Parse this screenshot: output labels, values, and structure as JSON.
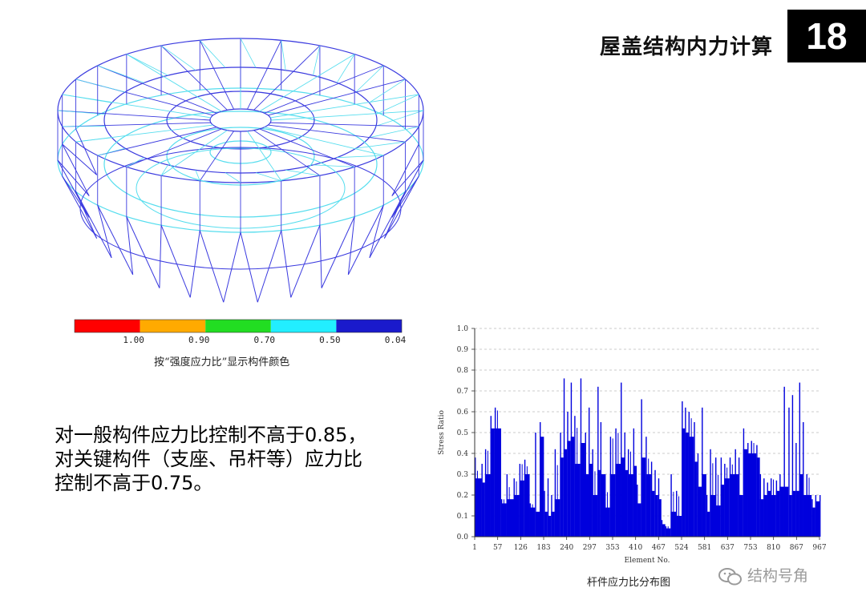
{
  "header": {
    "title": "屋盖结构内力计算",
    "page_number": "18"
  },
  "legend": {
    "colors": [
      "#ff0000",
      "#ffaa00",
      "#22dd22",
      "#22eeff",
      "#1a1acc"
    ],
    "tick_labels": [
      "1.00",
      "0.90",
      "0.70",
      "0.50",
      "0.04"
    ],
    "caption": "按“强度应力比”显示构件颜色"
  },
  "body_text": "对一般构件应力比控制不高于0.85，对关键构件（支座、吊杆等）应力比控制不高于0.75。",
  "watermark": {
    "text": "结构号角",
    "icon": "wechat-icon"
  },
  "chart_data": {
    "type": "bar",
    "title": "",
    "xlabel": "Element No.",
    "ylabel": "Stress Ratio",
    "caption": "杆件应力比分布图",
    "ylim": [
      0,
      1.0
    ],
    "y_ticks": [
      "0.0",
      "0.1",
      "0.2",
      "0.3",
      "0.4",
      "0.5",
      "0.6",
      "0.7",
      "0.8",
      "0.9",
      "1.0"
    ],
    "x_ticks": [
      "1",
      "57",
      "126",
      "183",
      "240",
      "297",
      "353",
      "410",
      "467",
      "524",
      "581",
      "637",
      "753",
      "810",
      "867",
      "967"
    ],
    "grid": true,
    "bar_color": "#0000dd",
    "element_range": [
      1,
      967
    ],
    "x": [
      1,
      20,
      30,
      45,
      57,
      75,
      90,
      110,
      126,
      140,
      155,
      170,
      183,
      195,
      205,
      215,
      225,
      240,
      250,
      260,
      270,
      280,
      297,
      310,
      320,
      330,
      345,
      353,
      365,
      380,
      395,
      410,
      420,
      430,
      445,
      455,
      467,
      480,
      495,
      505,
      515,
      524,
      535,
      550,
      565,
      581,
      590,
      600,
      615,
      625,
      637,
      650,
      660,
      675,
      690,
      700,
      715,
      730,
      740,
      753,
      765,
      775,
      790,
      800,
      810,
      820,
      830,
      845,
      855,
      867,
      880,
      890,
      900,
      910,
      920,
      930,
      945,
      955,
      967
    ],
    "y": [
      0.38,
      0.35,
      0.42,
      0.58,
      0.62,
      0.18,
      0.3,
      0.28,
      0.35,
      0.37,
      0.16,
      0.5,
      0.55,
      0.22,
      0.28,
      0.2,
      0.42,
      0.5,
      0.76,
      0.6,
      0.74,
      0.58,
      0.76,
      0.5,
      0.62,
      0.42,
      0.72,
      0.55,
      0.3,
      0.48,
      0.52,
      0.74,
      0.5,
      0.42,
      0.52,
      0.25,
      0.66,
      0.48,
      0.36,
      0.32,
      0.28,
      0.08,
      0.05,
      0.3,
      0.22,
      0.65,
      0.62,
      0.6,
      0.55,
      0.4,
      0.62,
      0.2,
      0.42,
      0.38,
      0.38,
      0.35,
      0.38,
      0.42,
      0.38,
      0.52,
      0.45,
      0.46,
      0.44,
      0.3,
      0.28,
      0.26,
      0.28,
      0.27,
      0.3,
      0.72,
      0.62,
      0.68,
      0.45,
      0.74,
      0.55,
      0.3,
      0.18,
      0.2,
      0.2
    ],
    "y_base": [
      0.28,
      0.26,
      0.3,
      0.52,
      0.52,
      0.16,
      0.18,
      0.2,
      0.27,
      0.3,
      0.14,
      0.12,
      0.48,
      0.12,
      0.1,
      0.12,
      0.18,
      0.38,
      0.42,
      0.46,
      0.48,
      0.35,
      0.45,
      0.3,
      0.35,
      0.2,
      0.32,
      0.3,
      0.14,
      0.3,
      0.35,
      0.38,
      0.32,
      0.3,
      0.34,
      0.16,
      0.38,
      0.3,
      0.22,
      0.2,
      0.18,
      0.06,
      0.04,
      0.12,
      0.1,
      0.52,
      0.5,
      0.48,
      0.36,
      0.24,
      0.3,
      0.12,
      0.2,
      0.15,
      0.25,
      0.28,
      0.3,
      0.3,
      0.2,
      0.42,
      0.4,
      0.4,
      0.38,
      0.18,
      0.2,
      0.22,
      0.2,
      0.22,
      0.24,
      0.24,
      0.2,
      0.22,
      0.22,
      0.3,
      0.2,
      0.2,
      0.14,
      0.17,
      0.17
    ]
  }
}
